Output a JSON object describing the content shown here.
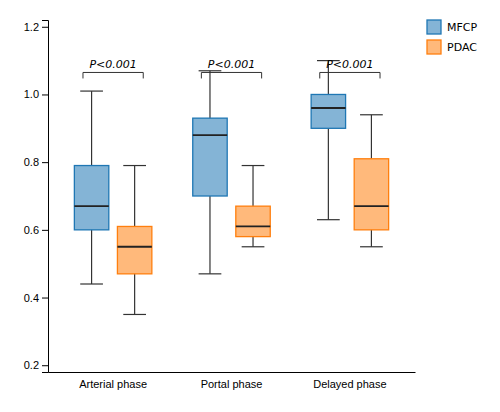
{
  "chart_data": {
    "type": "box",
    "categories": [
      "Arterial phase",
      "Portal phase",
      "Delayed phase"
    ],
    "series": [
      {
        "name": "MFCP",
        "values": [
          {
            "whislo": 0.44,
            "q1": 0.6,
            "med": 0.67,
            "q3": 0.79,
            "whishi": 1.01
          },
          {
            "whislo": 0.47,
            "q1": 0.7,
            "med": 0.88,
            "q3": 0.93,
            "whishi": 1.07
          },
          {
            "whislo": 0.63,
            "q1": 0.9,
            "med": 0.96,
            "q3": 1.0,
            "whishi": 1.1
          }
        ]
      },
      {
        "name": "PDAC",
        "values": [
          {
            "whislo": 0.35,
            "q1": 0.47,
            "med": 0.55,
            "q3": 0.61,
            "whishi": 0.79
          },
          {
            "whislo": 0.55,
            "q1": 0.58,
            "med": 0.61,
            "q3": 0.67,
            "whishi": 0.79
          },
          {
            "whislo": 0.55,
            "q1": 0.6,
            "med": 0.67,
            "q3": 0.81,
            "whishi": 0.94
          }
        ]
      }
    ],
    "annotations": [
      {
        "text": "P<0.001",
        "y": 1.065
      },
      {
        "text": "P<0.001",
        "y": 1.065
      },
      {
        "text": "P<0.001",
        "y": 1.065
      }
    ],
    "ylim": [
      0.18,
      1.22
    ],
    "yticks": [
      0.2,
      0.4,
      0.6,
      0.8,
      {
        "value": 1.0,
        "label": "1.0"
      },
      1.2
    ],
    "grid": false,
    "legend": "upper right"
  }
}
